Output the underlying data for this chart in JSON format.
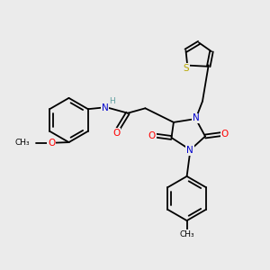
{
  "bg_color": "#ebebeb",
  "atom_colors": {
    "C": "#000000",
    "N": "#0000cc",
    "O": "#ff0000",
    "S": "#b8a800",
    "H": "#5fa0a0"
  },
  "bond_lw": 1.3,
  "figsize": [
    3.0,
    3.0
  ],
  "dpi": 100,
  "xlim": [
    0,
    10
  ],
  "ylim": [
    0,
    10
  ]
}
